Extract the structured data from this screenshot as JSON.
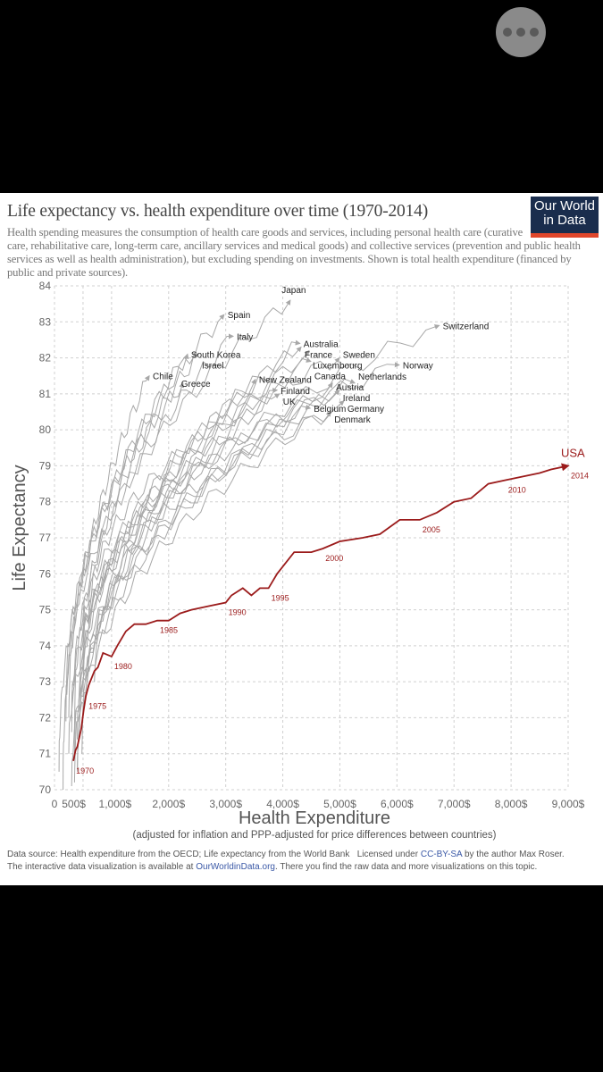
{
  "viewer": {
    "more_button_icon": "three-dots-icon"
  },
  "logo": {
    "line1": "Our World",
    "line2": "in Data"
  },
  "footer": {
    "source": "Data source: Health expenditure from the OECD; Life expectancy from the World Bank",
    "license_prefix": "Licensed under",
    "license_link": "CC-BY-SA",
    "license_suffix": "by the author Max Roser.",
    "interactive_prefix": "The interactive data visualization is available at",
    "interactive_link": "OurWorldinData.org",
    "interactive_suffix": ". There you find the raw data and more visualizations on this topic."
  },
  "chart_data": {
    "type": "line",
    "title": "Life expectancy vs. health expenditure over time (1970-2014)",
    "subtitle": "Health spending measures the consumption of health care goods and services, including personal health care (curative care, rehabilitative care, long-term care, ancillary services and medical goods) and collective services (prevention and public health services as well as health administration), but excluding spending on investments. Shown is total health expenditure (financed by public and private sources).",
    "xlabel": "Health Expenditure",
    "xlabel_note": "(adjusted for inflation and PPP-adjusted for price differences between countries)",
    "ylabel": "Life Expectancy",
    "xlim": [
      0,
      9000
    ],
    "ylim": [
      70,
      84
    ],
    "grid": true,
    "x_ticks": [
      {
        "v": 0,
        "label": "0"
      },
      {
        "v": 500,
        "label": "500$"
      },
      {
        "v": 1000,
        "label": "1,000$"
      },
      {
        "v": 2000,
        "label": "2,000$"
      },
      {
        "v": 3000,
        "label": "3,000$"
      },
      {
        "v": 4000,
        "label": "4,000$"
      },
      {
        "v": 5000,
        "label": "5,000$"
      },
      {
        "v": 6000,
        "label": "6,000$"
      },
      {
        "v": 7000,
        "label": "7,000$"
      },
      {
        "v": 8000,
        "label": "8,000$"
      },
      {
        "v": 9000,
        "label": "9,000$"
      }
    ],
    "y_ticks": [
      {
        "v": 70,
        "label": "70"
      },
      {
        "v": 71,
        "label": "71"
      },
      {
        "v": 72,
        "label": "72"
      },
      {
        "v": 73,
        "label": "73"
      },
      {
        "v": 74,
        "label": "74"
      },
      {
        "v": 75,
        "label": "75"
      },
      {
        "v": 76,
        "label": "76"
      },
      {
        "v": 77,
        "label": "77"
      },
      {
        "v": 78,
        "label": "78"
      },
      {
        "v": 79,
        "label": "79"
      },
      {
        "v": 80,
        "label": "80"
      },
      {
        "v": 81,
        "label": "81"
      },
      {
        "v": 82,
        "label": "82"
      },
      {
        "v": 83,
        "label": "83"
      },
      {
        "v": 84,
        "label": "84"
      }
    ],
    "colors": {
      "usa": "#9b1b1b",
      "others": "#a8a8a8",
      "grid": "#d0d0d0"
    },
    "highlight": {
      "name": "USA",
      "x": [
        330,
        370,
        400,
        470,
        510,
        550,
        600,
        700,
        760,
        850,
        1000,
        1100,
        1250,
        1400,
        1600,
        1800,
        2000,
        2200,
        2400,
        2700,
        3000,
        3100,
        3300,
        3450,
        3600,
        3750,
        3900,
        4100,
        4200,
        4500,
        4700,
        5000,
        5400,
        5700,
        6050,
        6400,
        6700,
        7000,
        7300,
        7600,
        7900,
        8200,
        8500,
        8700,
        9000
      ],
      "y": [
        70.8,
        71.1,
        71.2,
        71.7,
        72.2,
        72.6,
        72.9,
        73.3,
        73.4,
        73.8,
        73.7,
        74.0,
        74.4,
        74.6,
        74.6,
        74.7,
        74.7,
        74.9,
        75.0,
        75.1,
        75.2,
        75.4,
        75.6,
        75.4,
        75.6,
        75.6,
        76.0,
        76.4,
        76.6,
        76.6,
        76.7,
        76.9,
        77.0,
        77.1,
        77.5,
        77.5,
        77.7,
        78.0,
        78.1,
        78.5,
        78.6,
        78.7,
        78.8,
        78.9,
        79.0
      ],
      "year_labels": [
        {
          "year": "1970",
          "i": 0
        },
        {
          "year": "1975",
          "i": 5
        },
        {
          "year": "1980",
          "i": 10
        },
        {
          "year": "1985",
          "i": 15
        },
        {
          "year": "1990",
          "i": 20
        },
        {
          "year": "1995",
          "i": 25
        },
        {
          "year": "2000",
          "i": 30
        },
        {
          "year": "2005",
          "i": 35
        },
        {
          "year": "2010",
          "i": 40
        },
        {
          "year": "2014",
          "i": 44
        }
      ]
    },
    "series": [
      {
        "name": "Japan",
        "start": [
          200,
          71.9
        ],
        "end": [
          4130,
          83.6
        ]
      },
      {
        "name": "Spain",
        "start": [
          250,
          72.0
        ],
        "end": [
          2970,
          83.2
        ]
      },
      {
        "name": "Italy",
        "start": [
          300,
          71.6
        ],
        "end": [
          3130,
          82.6
        ]
      },
      {
        "name": "South Korea",
        "start": [
          80,
          70.5
        ],
        "end": [
          2330,
          82.1
        ]
      },
      {
        "name": "Israel",
        "start": [
          350,
          71.7
        ],
        "end": [
          2520,
          82.1
        ]
      },
      {
        "name": "Chile",
        "start": [
          150,
          70.0
        ],
        "end": [
          1660,
          81.5
        ]
      },
      {
        "name": "Greece",
        "start": [
          200,
          72.3
        ],
        "end": [
          2250,
          81.3
        ]
      },
      {
        "name": "Australia",
        "start": [
          480,
          71.0
        ],
        "end": [
          4300,
          82.4
        ]
      },
      {
        "name": "France",
        "start": [
          450,
          72.2
        ],
        "end": [
          4320,
          82.3
        ]
      },
      {
        "name": "Luxembourg",
        "start": [
          400,
          70.5
        ],
        "end": [
          4460,
          82.2
        ]
      },
      {
        "name": "Canada",
        "start": [
          500,
          72.7
        ],
        "end": [
          4490,
          81.9
        ]
      },
      {
        "name": "Sweden",
        "start": [
          600,
          74.6
        ],
        "end": [
          4990,
          82.0
        ]
      },
      {
        "name": "Switzerland",
        "start": [
          700,
          73.0
        ],
        "end": [
          6740,
          82.9
        ]
      },
      {
        "name": "Norway",
        "start": [
          500,
          74.1
        ],
        "end": [
          6040,
          81.8
        ]
      },
      {
        "name": "New Zealand",
        "start": [
          400,
          71.4
        ],
        "end": [
          3520,
          81.4
        ]
      },
      {
        "name": "Finland",
        "start": [
          350,
          70.2
        ],
        "end": [
          3900,
          81.1
        ]
      },
      {
        "name": "UK",
        "start": [
          300,
          71.9
        ],
        "end": [
          3940,
          81.0
        ]
      },
      {
        "name": "Austria",
        "start": [
          300,
          70.1
        ],
        "end": [
          4870,
          81.3
        ]
      },
      {
        "name": "Netherlands",
        "start": [
          500,
          73.6
        ],
        "end": [
          5260,
          81.3
        ]
      },
      {
        "name": "Ireland",
        "start": [
          250,
          71.0
        ],
        "end": [
          4990,
          81.1
        ]
      },
      {
        "name": "Germany",
        "start": [
          400,
          70.6
        ],
        "end": [
          5070,
          80.8
        ]
      },
      {
        "name": "Belgium",
        "start": [
          350,
          71.0
        ],
        "end": [
          4480,
          80.6
        ]
      },
      {
        "name": "Denmark",
        "start": [
          450,
          73.3
        ],
        "end": [
          4840,
          80.5
        ]
      }
    ]
  }
}
